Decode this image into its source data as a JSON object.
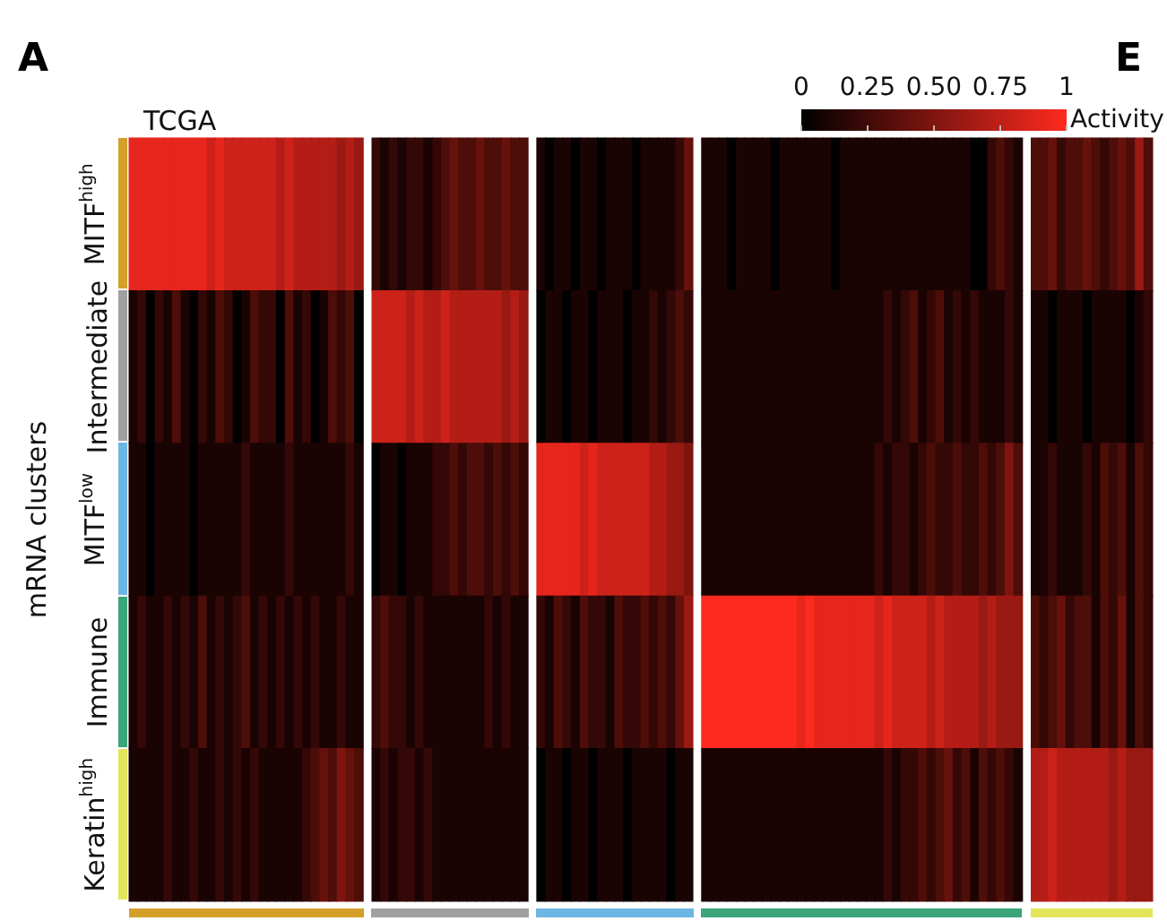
{
  "chart_data": {
    "type": "heatmap",
    "title": "TCGA",
    "ylabel": "mRNA clusters",
    "clabel": "Activity",
    "clim": [
      0,
      1
    ],
    "cticks": [
      0,
      0.25,
      {
        "value": 0.5,
        "label": "0.50"
      },
      0.75,
      1
    ],
    "tick_labels": "y",
    "annotations": [
      "A",
      "E"
    ],
    "y_categories": [
      "MITF$^{high}$",
      "Intermediate",
      "MITF$^{low}$",
      "Immune",
      "Keratin$^{high}$"
    ],
    "categories": [
      null,
      null,
      null,
      null,
      null,
      null,
      null,
      null,
      null,
      null,
      null,
      null,
      null,
      null,
      null,
      null,
      null,
      null,
      null,
      null,
      null,
      null,
      null,
      null,
      null,
      null,
      null,
      null,
      null,
      null,
      null,
      null,
      null,
      null,
      null,
      null,
      null,
      null,
      null,
      null,
      null,
      null,
      null,
      null,
      null,
      null,
      null,
      null,
      null,
      null,
      null,
      null,
      null,
      null,
      null,
      null,
      null,
      null,
      null,
      null,
      null,
      null,
      null,
      null,
      null,
      null,
      null,
      null,
      null,
      null,
      null,
      null,
      null,
      null,
      null,
      null,
      null,
      null,
      null,
      null,
      null,
      null,
      null,
      null,
      null,
      null,
      null,
      null,
      null,
      null,
      null,
      null,
      null,
      null,
      null,
      null,
      null,
      null,
      null,
      null,
      null,
      null,
      null,
      null,
      null,
      null,
      null,
      null,
      null,
      null,
      null,
      null,
      null,
      null,
      null,
      null,
      null,
      null
    ],
    "cells": [
      [
        0.9,
        0.9,
        0.9,
        0.9,
        0.9,
        0.9,
        0.9,
        0.9,
        0.9,
        0.8,
        0.9,
        0.8,
        0.8,
        0.8,
        0.8,
        0.8,
        0.8,
        0.7,
        0.8,
        0.7,
        0.7,
        0.7,
        0.7,
        0.7,
        0.6,
        0.7,
        0.6,
        null,
        0.2,
        0.1,
        0.2,
        0.1,
        0.2,
        0.2,
        0.1,
        0.2,
        0.3,
        0.4,
        0.3,
        0.3,
        0.4,
        0.3,
        0.3,
        0.4,
        0.3,
        0.3,
        null,
        0.1,
        0.0,
        0.1,
        0.1,
        0.0,
        0.1,
        0.1,
        0.0,
        0.1,
        0.1,
        0.1,
        0.0,
        0.1,
        0.1,
        0.1,
        0.1,
        0.2,
        0.4,
        null,
        0.1,
        0.1,
        0.1,
        0.0,
        0.1,
        0.1,
        0.1,
        0.1,
        0.0,
        0.1,
        0.1,
        0.1,
        0.1,
        0.1,
        0.1,
        0.0,
        0.1,
        0.1,
        0.1,
        0.1,
        0.1,
        0.1,
        0.1,
        0.1,
        0.1,
        0.1,
        0.1,
        0.1,
        0.1,
        0.1,
        0.1,
        0.0,
        0.0,
        0.2,
        0.3,
        0.2,
        0.1,
        null,
        0.3,
        0.3,
        0.4,
        0.2,
        0.3,
        0.3,
        0.4,
        0.3,
        0.2,
        0.3,
        0.4,
        0.3,
        0.6,
        0.3
      ],
      [
        0.1,
        0.2,
        0.0,
        0.2,
        0.1,
        0.3,
        0.1,
        0.0,
        0.2,
        0.1,
        0.3,
        0.2,
        0.0,
        0.1,
        0.3,
        0.2,
        0.2,
        0.0,
        0.3,
        0.1,
        0.2,
        0.0,
        0.1,
        0.3,
        0.2,
        0.3,
        0.0,
        null,
        0.8,
        0.8,
        0.8,
        0.8,
        0.7,
        0.8,
        0.7,
        0.7,
        0.8,
        0.7,
        0.7,
        0.7,
        0.7,
        0.7,
        0.7,
        0.6,
        0.7,
        0.6,
        null,
        0.0,
        0.1,
        0.1,
        0.0,
        0.1,
        0.1,
        0.0,
        0.1,
        0.1,
        0.1,
        0.0,
        0.1,
        0.1,
        0.2,
        0.1,
        0.2,
        0.3,
        0.2,
        null,
        0.1,
        0.1,
        0.1,
        0.1,
        0.1,
        0.1,
        0.1,
        0.1,
        0.1,
        0.1,
        0.1,
        0.1,
        0.1,
        0.1,
        0.1,
        0.1,
        0.1,
        0.1,
        0.1,
        0.1,
        0.1,
        0.2,
        0.1,
        0.2,
        0.3,
        0.1,
        0.2,
        0.3,
        0.1,
        0.2,
        0.1,
        0.2,
        0.1,
        0.1,
        0.1,
        0.2,
        0.1,
        null,
        0.1,
        0.1,
        0.0,
        0.1,
        0.1,
        0.1,
        0.0,
        0.1,
        0.1,
        0.1,
        0.1,
        0.0,
        0.1,
        0.2
      ],
      [
        0.1,
        0.1,
        0.0,
        0.1,
        0.1,
        0.1,
        0.1,
        0.0,
        0.1,
        0.1,
        0.1,
        0.1,
        0.1,
        0.2,
        0.1,
        0.1,
        0.1,
        0.1,
        0.2,
        0.1,
        0.1,
        0.1,
        0.1,
        0.1,
        0.1,
        0.2,
        0.1,
        null,
        0.0,
        0.1,
        0.1,
        0.0,
        0.1,
        0.1,
        0.1,
        0.2,
        0.2,
        0.3,
        0.2,
        0.3,
        0.3,
        0.2,
        0.3,
        0.2,
        0.3,
        0.2,
        null,
        0.9,
        0.9,
        0.9,
        0.9,
        0.9,
        0.8,
        0.9,
        0.8,
        0.8,
        0.8,
        0.8,
        0.8,
        0.8,
        0.7,
        0.7,
        0.6,
        0.6,
        0.5,
        null,
        0.1,
        0.1,
        0.1,
        0.1,
        0.1,
        0.1,
        0.1,
        0.1,
        0.1,
        0.1,
        0.1,
        0.1,
        0.1,
        0.1,
        0.1,
        0.1,
        0.1,
        0.1,
        0.1,
        0.1,
        0.2,
        0.1,
        0.2,
        0.2,
        0.1,
        0.2,
        0.3,
        0.2,
        0.2,
        0.3,
        0.2,
        0.2,
        0.3,
        0.2,
        0.3,
        0.5,
        0.3,
        null,
        0.1,
        0.1,
        0.2,
        0.1,
        0.1,
        0.1,
        0.2,
        0.1,
        0.3,
        0.2,
        0.3,
        0.1,
        0.3,
        0.2
      ],
      [
        0.1,
        0.2,
        0.1,
        0.1,
        0.2,
        0.1,
        0.2,
        0.1,
        0.3,
        0.1,
        0.2,
        0.1,
        0.2,
        0.3,
        0.1,
        0.2,
        0.1,
        0.2,
        0.1,
        0.2,
        0.1,
        0.2,
        0.1,
        0.1,
        0.2,
        0.1,
        0.1,
        null,
        0.2,
        0.3,
        0.2,
        0.2,
        0.1,
        0.2,
        0.1,
        0.1,
        0.1,
        0.1,
        0.1,
        0.1,
        0.1,
        0.2,
        0.1,
        0.2,
        0.1,
        0.1,
        null,
        0.2,
        0.1,
        0.3,
        0.2,
        0.1,
        0.3,
        0.2,
        0.2,
        0.1,
        0.3,
        0.2,
        0.2,
        0.3,
        0.2,
        0.3,
        0.2,
        0.4,
        0.6,
        null,
        1,
        1,
        1,
        1,
        1,
        1,
        1,
        1,
        1,
        1,
        1,
        0.9,
        1,
        0.9,
        0.9,
        0.9,
        0.9,
        0.9,
        0.9,
        0.9,
        0.8,
        0.9,
        0.8,
        0.8,
        0.8,
        0.8,
        0.7,
        0.8,
        0.7,
        0.7,
        0.7,
        0.7,
        0.6,
        0.7,
        0.6,
        0.6,
        0.6,
        null,
        0.3,
        0.2,
        0.3,
        0.4,
        0.2,
        0.3,
        0.3,
        0.1,
        0.3,
        0.2,
        0.4,
        0.1,
        0.3,
        0.2
      ],
      [
        0.1,
        0.1,
        0.1,
        0.1,
        0.2,
        0.1,
        0.1,
        0.2,
        0.1,
        0.1,
        0.2,
        0.1,
        0.2,
        0.1,
        0.2,
        0.1,
        0.1,
        0.1,
        0.1,
        0.1,
        0.2,
        0.3,
        0.4,
        0.3,
        0.5,
        0.4,
        0.3,
        null,
        0.1,
        0.2,
        0.1,
        0.2,
        0.2,
        0.1,
        0.2,
        0.1,
        0.1,
        0.1,
        0.1,
        0.1,
        0.1,
        0.1,
        0.1,
        0.1,
        0.1,
        0.1,
        null,
        0.0,
        0.1,
        0.1,
        0.0,
        0.1,
        0.1,
        0.0,
        0.1,
        0.1,
        0.1,
        0.0,
        0.1,
        0.1,
        0.1,
        0.1,
        0.0,
        0.1,
        0.1,
        null,
        0.1,
        0.1,
        0.1,
        0.1,
        0.1,
        0.1,
        0.1,
        0.1,
        0.1,
        0.1,
        0.1,
        0.1,
        0.1,
        0.1,
        0.1,
        0.1,
        0.1,
        0.1,
        0.1,
        0.1,
        0.1,
        0.2,
        0.1,
        0.2,
        0.2,
        0.3,
        0.2,
        0.3,
        0.4,
        0.2,
        0.3,
        0.1,
        0.3,
        0.2,
        0.3,
        0.2,
        0.1,
        null,
        0.7,
        0.7,
        0.8,
        0.7,
        0.7,
        0.7,
        0.7,
        0.7,
        0.7,
        0.6,
        0.7,
        0.6,
        0.6,
        0.6
      ]
    ]
  }
}
